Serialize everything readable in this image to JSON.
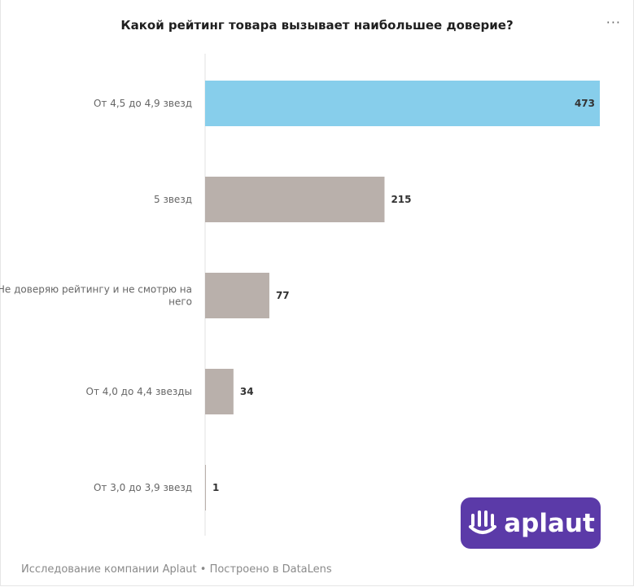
{
  "title": "Какой рейтинг товара вызывает наибольшее доверие?",
  "menu_label": "···",
  "footer": "Исследование компании Aplaut • Построено в DataLens",
  "logo": {
    "text": "aplaut",
    "icon": "hand-icon",
    "bg_color": "#5b3aa8"
  },
  "chart_data": {
    "type": "bar",
    "orientation": "horizontal",
    "title": "Какой рейтинг товара вызывает наибольшее доверие?",
    "categories": [
      "От 4,5 до 4,9 звезд",
      "5 звезд",
      "Не доверяю рейтингу и не смотрю на него",
      "От 4,0 до 4,4 звезды",
      "От 3,0 до 3,9 звезд"
    ],
    "category_lines": [
      [
        "От 4,5 до 4,9 звезд"
      ],
      [
        "5 звезд"
      ],
      [
        "Не доверяю рейтингу и не смотрю на",
        "него"
      ],
      [
        "От 4,0 до 4,4 звезды"
      ],
      [
        "От 3,0 до 3,9 звезд"
      ]
    ],
    "values": [
      473,
      215,
      77,
      34,
      1
    ],
    "colors": [
      "#87ceeb",
      "#b9b0ab",
      "#b9b0ab",
      "#b9b0ab",
      "#b9b0ab"
    ],
    "xlim": [
      0,
      473
    ],
    "grid": false,
    "legend": "none"
  }
}
